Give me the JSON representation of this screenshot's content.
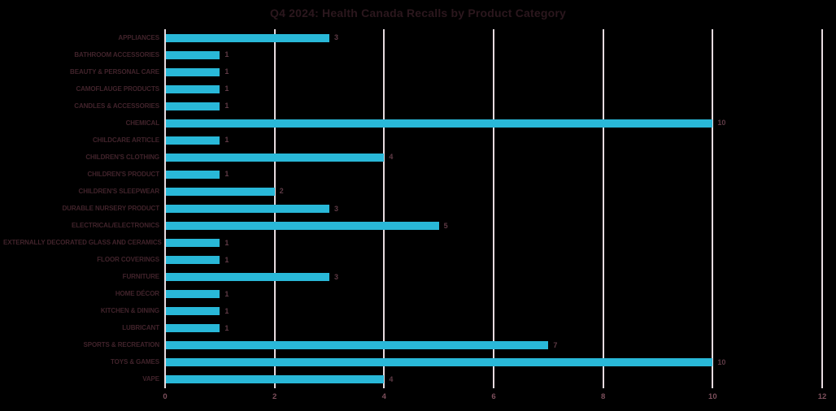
{
  "chart_data": {
    "type": "bar",
    "orientation": "horizontal",
    "title": "Q4 2024: Health Canada Recalls by Product Category",
    "categories": [
      "APPLIANCES",
      "BATHROOM ACCESSORIES",
      "BEAUTY & PERSONAL CARE",
      "CAMOFLAUGE PRODUCTS",
      "CANDLES & ACCESSORIES",
      "CHEMICAL",
      "CHILDCARE ARTICLE",
      "CHILDREN'S CLOTHING",
      "CHILDREN'S PRODUCT",
      "CHILDREN'S SLEEPWEAR",
      "DURABLE NURSERY PRODUCT",
      "ELECTRICAL/ELECTRONICS",
      "EXTERNALLY DECORATED GLASS AND CERAMICS",
      "FLOOR COVERINGS",
      "FURNITURE",
      "HOME DÉCOR",
      "KITCHEN & DINING",
      "LUBRICANT",
      "SPORTS & RECREATION",
      "TOYS & GAMES",
      "VAPE"
    ],
    "values": [
      3,
      1,
      1,
      1,
      1,
      10,
      1,
      4,
      1,
      2,
      3,
      5,
      1,
      1,
      3,
      1,
      1,
      1,
      7,
      10,
      4
    ],
    "xlabel": "",
    "ylabel": "",
    "xlim": [
      0,
      12
    ],
    "xticks": [
      0,
      2,
      4,
      6,
      8,
      10,
      12
    ],
    "grid": "vertical-only",
    "data_labels": true,
    "legend": "none",
    "colors": {
      "background": "#000000",
      "bar": "#29b8d8",
      "gridline": "#e7dbdf",
      "title_text": "#2b171d",
      "category_label_text": "#41232b",
      "value_label_text": "#5e3a45",
      "axis_tick_text": "#7d4f5c"
    }
  }
}
